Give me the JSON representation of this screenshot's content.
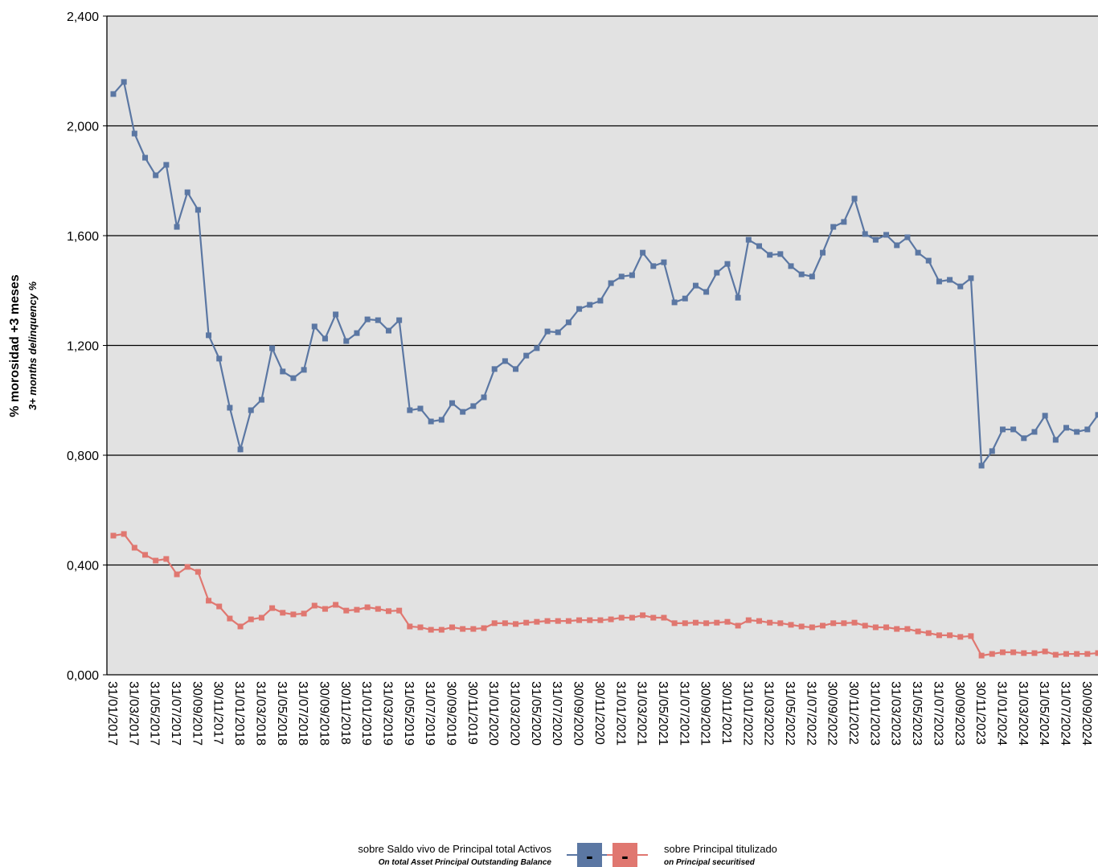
{
  "chart_data": {
    "type": "line",
    "ylabel": "% morosidad +3 meses",
    "ylabel_en": "3+ months delinquency %",
    "categories": [
      "31/01/2017",
      null,
      "31/03/2017",
      null,
      "31/05/2017",
      null,
      "31/07/2017",
      null,
      "30/09/2017",
      null,
      "30/11/2017",
      null,
      "31/01/2018",
      null,
      "31/03/2018",
      null,
      "31/05/2018",
      null,
      "31/07/2018",
      null,
      "30/09/2018",
      null,
      "30/11/2018",
      null,
      "31/01/2019",
      null,
      "31/03/2019",
      null,
      "31/05/2019",
      null,
      "31/07/2019",
      null,
      "30/09/2019",
      null,
      "30/11/2019",
      null,
      "31/01/2020",
      null,
      "31/03/2020",
      null,
      "31/05/2020",
      null,
      "31/07/2020",
      null,
      "30/09/2020",
      null,
      "30/11/2020",
      null,
      "31/01/2021",
      null,
      "31/03/2021",
      null,
      "31/05/2021",
      null,
      "31/07/2021",
      null,
      "30/09/2021",
      null,
      "30/11/2021",
      null,
      "31/01/2022",
      null,
      "31/03/2022",
      null,
      "31/05/2022",
      null,
      "31/07/2022",
      null,
      "30/09/2022",
      null,
      "30/11/2022",
      null,
      "31/01/2023",
      null,
      "31/03/2023",
      null,
      "31/05/2023",
      null,
      "31/07/2023",
      null,
      "30/09/2023",
      null,
      "30/11/2023",
      null,
      "31/01/2024",
      null,
      "31/03/2024",
      null,
      "31/05/2024",
      null,
      "31/07/2024",
      null,
      "30/09/2024",
      null
    ],
    "series": [
      {
        "name": "sobre Saldo vivo de Principal total Activos",
        "name_en": "On total Asset Principal Outstanding Balance",
        "marker_label": "-",
        "color": "#5b77a3",
        "values": [
          2.116,
          2.16,
          1.972,
          1.884,
          1.82,
          1.858,
          1.632,
          1.758,
          1.694,
          1.237,
          1.152,
          0.973,
          0.821,
          0.964,
          1.002,
          1.19,
          1.105,
          1.081,
          1.111,
          1.269,
          1.225,
          1.313,
          1.216,
          1.245,
          1.295,
          1.292,
          1.254,
          1.292,
          0.964,
          0.97,
          0.923,
          0.929,
          0.99,
          0.958,
          0.979,
          1.011,
          1.114,
          1.143,
          1.114,
          1.163,
          1.19,
          1.251,
          1.248,
          1.284,
          1.333,
          1.348,
          1.363,
          1.427,
          1.451,
          1.456,
          1.538,
          1.489,
          1.503,
          1.357,
          1.371,
          1.418,
          1.395,
          1.465,
          1.497,
          1.374,
          1.585,
          1.562,
          1.53,
          1.533,
          1.489,
          1.459,
          1.451,
          1.538,
          1.632,
          1.65,
          1.735,
          1.606,
          1.585,
          1.603,
          1.565,
          1.594,
          1.538,
          1.509,
          1.433,
          1.439,
          1.415,
          1.445,
          0.762,
          0.815,
          0.894,
          0.894,
          0.862,
          0.885,
          0.944,
          0.856,
          0.9,
          0.885,
          0.894,
          0.947
        ]
      },
      {
        "name": "sobre Principal titulizado",
        "name_en": "on Principal securitised",
        "marker_label": "-",
        "color": "#e07770",
        "values": [
          0.507,
          0.513,
          0.463,
          0.437,
          0.416,
          0.422,
          0.366,
          0.393,
          0.375,
          0.27,
          0.249,
          0.205,
          0.176,
          0.202,
          0.208,
          0.243,
          0.226,
          0.22,
          0.223,
          0.252,
          0.24,
          0.255,
          0.234,
          0.237,
          0.246,
          0.24,
          0.232,
          0.234,
          0.176,
          0.173,
          0.164,
          0.164,
          0.173,
          0.167,
          0.167,
          0.17,
          0.188,
          0.188,
          0.185,
          0.19,
          0.193,
          0.196,
          0.196,
          0.196,
          0.199,
          0.199,
          0.199,
          0.202,
          0.208,
          0.208,
          0.217,
          0.208,
          0.208,
          0.188,
          0.188,
          0.19,
          0.188,
          0.19,
          0.193,
          0.179,
          0.199,
          0.196,
          0.19,
          0.188,
          0.182,
          0.176,
          0.173,
          0.179,
          0.188,
          0.188,
          0.19,
          0.179,
          0.173,
          0.173,
          0.167,
          0.167,
          0.158,
          0.152,
          0.144,
          0.144,
          0.138,
          0.141,
          0.07,
          0.076,
          0.082,
          0.082,
          0.079,
          0.079,
          0.085,
          0.073,
          0.076,
          0.076,
          0.076,
          0.079
        ]
      }
    ],
    "ylim": [
      0,
      2.4
    ],
    "yticks": [
      {
        "value": 0,
        "label": "0,000"
      },
      {
        "value": 0.4,
        "label": "0,400"
      },
      {
        "value": 0.8,
        "label": "0,800"
      },
      {
        "value": 1.2,
        "label": "1,200"
      },
      {
        "value": 1.6,
        "label": "1,600"
      },
      {
        "value": 2.0,
        "label": "2,000"
      },
      {
        "value": 2.4,
        "label": "2,400"
      }
    ],
    "grid": true,
    "background": "#e2e2e2"
  }
}
